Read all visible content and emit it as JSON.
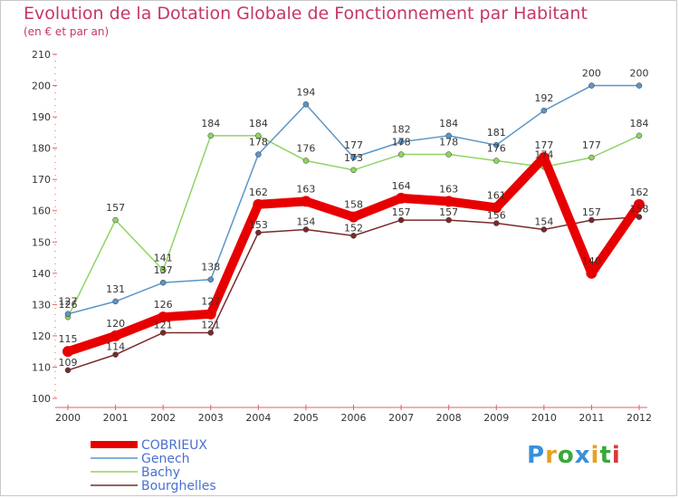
{
  "header": {
    "title": "Evolution de la Dotation Globale de Fonctionnement par Habitant",
    "subtitle": "(en € et par an)"
  },
  "chart_data": {
    "type": "line",
    "title": "Evolution de la Dotation Globale de Fonctionnement par Habitant",
    "subtitle": "(en € et par an)",
    "xlabel": "",
    "ylabel": "",
    "ylim": [
      100,
      210
    ],
    "yticks": [
      100,
      110,
      120,
      130,
      140,
      150,
      160,
      170,
      180,
      190,
      200,
      210
    ],
    "grid": false,
    "legend_position": "bottom-left",
    "categories": [
      "2000",
      "2001",
      "2002",
      "2003",
      "2004",
      "2005",
      "2006",
      "2007",
      "2008",
      "2009",
      "2010",
      "2011",
      "2012"
    ],
    "series": [
      {
        "name": "Bourghelles",
        "color": "#7a2a2a",
        "values": [
          109,
          114,
          121,
          121,
          153,
          154,
          152,
          157,
          157,
          156,
          154,
          157,
          158
        ]
      },
      {
        "name": "Bachy",
        "color": "#8fd462",
        "values": [
          126,
          157,
          141,
          184,
          184,
          176,
          173,
          178,
          178,
          176,
          174,
          177,
          184
        ]
      },
      {
        "name": "Genech",
        "color": "#5b95c8",
        "values": [
          127,
          131,
          137,
          138,
          178,
          194,
          177,
          182,
          184,
          181,
          192,
          200,
          200
        ]
      },
      {
        "name": "COBRIEUX",
        "color": "#e80000",
        "values": [
          115,
          120,
          126,
          127,
          162,
          163,
          158,
          164,
          163,
          161,
          177,
          140,
          162
        ]
      }
    ]
  },
  "legend": {
    "items": [
      {
        "label": "COBRIEUX",
        "color": "#e80000"
      },
      {
        "label": "Genech",
        "color": "#5b95c8"
      },
      {
        "label": "Bachy",
        "color": "#8fd462"
      },
      {
        "label": "Bourghelles",
        "color": "#7a2a2a"
      }
    ]
  },
  "logo": {
    "letters": [
      "P",
      "r",
      "o",
      "x",
      "i",
      "t",
      "i"
    ],
    "colors": [
      "#3a8fd8",
      "#e8a020",
      "#3aa83a",
      "#3a8fd8",
      "#e8a020",
      "#3aa83a",
      "#d83a3a"
    ]
  }
}
